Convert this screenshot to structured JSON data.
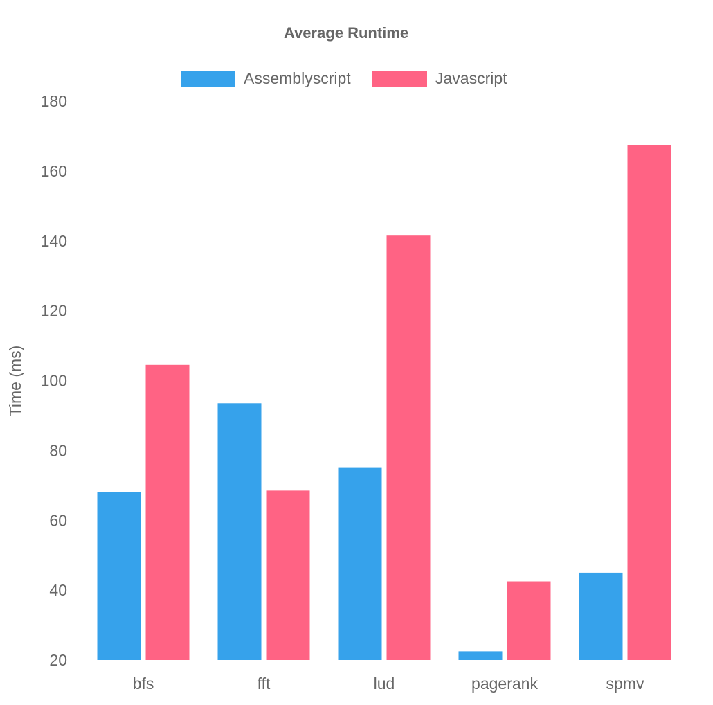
{
  "chart_data": {
    "type": "bar",
    "title": "Average Runtime",
    "xlabel": "",
    "ylabel": "Time (ms)",
    "ylim": [
      20,
      180
    ],
    "yticks": [
      20,
      40,
      60,
      80,
      100,
      120,
      140,
      160,
      180
    ],
    "categories": [
      "bfs",
      "fft",
      "lud",
      "pagerank",
      "spmv"
    ],
    "series": [
      {
        "name": "Assemblyscript",
        "color": "#36a2eb",
        "values": [
          68,
          93.5,
          75,
          22.5,
          45
        ]
      },
      {
        "name": "Javascript",
        "color": "#ff6384",
        "values": [
          104.5,
          68.5,
          141.5,
          42.5,
          167.5
        ]
      }
    ],
    "legend_position": "top",
    "grid": false
  }
}
